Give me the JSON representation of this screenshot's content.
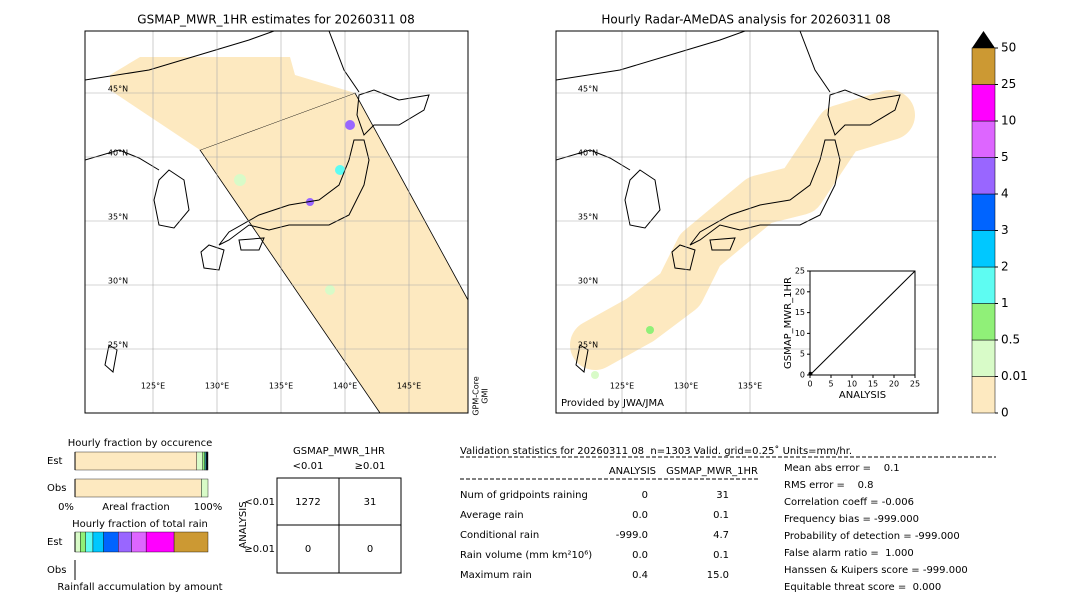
{
  "map_left": {
    "title": "GSMAP_MWR_1HR estimates for 20260311 08",
    "lat_labels": [
      "45°N",
      "40°N",
      "35°N",
      "30°N",
      "25°N"
    ],
    "lon_labels": [
      "125°E",
      "130°E",
      "135°E",
      "140°E",
      "145°E"
    ],
    "side_label": [
      "GPM-Core",
      "GMI"
    ]
  },
  "map_right": {
    "title": "Hourly Radar-AMeDAS analysis for 20260311 08",
    "lat_labels": [
      "45°N",
      "40°N",
      "35°N",
      "30°N",
      "25°N"
    ],
    "lon_labels": [
      "125°E",
      "130°E",
      "135°E"
    ],
    "credit": "Provided by JWA/JMA"
  },
  "colorbar": {
    "ticks": [
      0,
      0.01,
      0.5,
      1,
      2,
      3,
      4,
      5,
      10,
      25,
      50
    ],
    "colors": [
      "#fde9c0",
      "#d8fbc8",
      "#90f078",
      "#5efcf2",
      "#00c8ff",
      "#0064ff",
      "#9966ff",
      "#dd66ff",
      "#ff00ff",
      "#cc9933"
    ]
  },
  "chart_data": {
    "type": "scatter",
    "xlabel": "ANALYSIS",
    "ylabel": "GSMAP_MWR_1HR",
    "x": [
      0.1
    ],
    "y": [
      0.3
    ],
    "color": "#000000",
    "xlim": [
      0,
      25
    ],
    "ylim": [
      0,
      25
    ],
    "xticks": [
      0,
      5,
      10,
      15,
      20,
      25
    ],
    "yticks": [
      0,
      5,
      10,
      15,
      20,
      25
    ]
  },
  "fraction_occurrence": {
    "title": "Hourly fraction by occurence",
    "rows": [
      {
        "name": "Est",
        "values": [
          91.5,
          4.5,
          1.5,
          0.8,
          0.5,
          0.3,
          0.3,
          0.3,
          0.3,
          0
        ]
      },
      {
        "name": "Obs",
        "values": [
          95,
          5,
          0,
          0,
          0,
          0,
          0,
          0,
          0,
          0
        ]
      }
    ],
    "axis_labels": [
      "0%",
      "Areal fraction",
      "100%"
    ]
  },
  "fraction_rain": {
    "title": "Hourly fraction of total rain",
    "rows": [
      {
        "name": "Est",
        "values": [
          0,
          4,
          4,
          5.5,
          8,
          11,
          10,
          11,
          21,
          25.5
        ]
      },
      {
        "name": "Obs",
        "values": [
          0,
          0,
          0,
          0,
          0,
          0,
          0,
          0,
          0,
          0
        ]
      }
    ],
    "footer": "Rainfall accumulation by amount"
  },
  "contingency": {
    "title": "GSMAP_MWR_1HR",
    "columns": [
      "<0.01",
      "≥0.01"
    ],
    "row_title": "ANALYSIS",
    "rows": [
      "<0.01",
      "≥0.01"
    ],
    "cells": [
      [
        1272,
        31
      ],
      [
        0,
        0
      ]
    ]
  },
  "stats": {
    "header": "Validation statistics for 20260311 08  n=1303 Valid. grid=0.25˚ Units=mm/hr.",
    "columns": [
      "ANALYSIS",
      "GSMAP_MWR_1HR"
    ],
    "rows": [
      {
        "label": "Num of gridpoints raining",
        "values": [
          "0",
          "31"
        ]
      },
      {
        "label": "Average rain",
        "values": [
          "0.0",
          "0.1"
        ]
      },
      {
        "label": "Conditional rain",
        "values": [
          "-999.0",
          "4.7"
        ]
      },
      {
        "label": "Rain volume (mm km²10⁶)",
        "values": [
          "0.0",
          "0.1"
        ]
      },
      {
        "label": "Maximum rain",
        "values": [
          "0.4",
          "15.0"
        ]
      }
    ],
    "scores": [
      "Mean abs error =    0.1",
      "RMS error =    0.8",
      "Correlation coeff = -0.006",
      "Frequency bias = -999.000",
      "Probability of detection = -999.000",
      "False alarm ratio =  1.000",
      "Hanssen & Kuipers score = -999.000",
      "Equitable threat score =  0.000"
    ]
  }
}
